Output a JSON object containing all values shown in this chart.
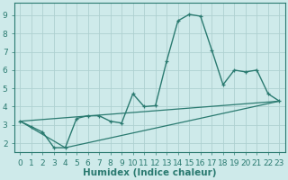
{
  "xlabel": "Humidex (Indice chaleur)",
  "ylabel": "",
  "bg_color": "#ceeaea",
  "line_color": "#2a7a70",
  "grid_color": "#aed0d0",
  "xlim": [
    -0.5,
    23.5
  ],
  "ylim": [
    1.5,
    9.7
  ],
  "xticks": [
    0,
    1,
    2,
    3,
    4,
    5,
    6,
    7,
    8,
    9,
    10,
    11,
    12,
    13,
    14,
    15,
    16,
    17,
    18,
    19,
    20,
    21,
    22,
    23
  ],
  "yticks": [
    2,
    3,
    4,
    5,
    6,
    7,
    8,
    9
  ],
  "line1_x": [
    0,
    1,
    2,
    3,
    4,
    5,
    6,
    7,
    8,
    9,
    10,
    11,
    12,
    13,
    14,
    15,
    16,
    17,
    18,
    19,
    20,
    21,
    22,
    23
  ],
  "line1_y": [
    3.2,
    2.9,
    2.6,
    1.75,
    1.75,
    3.35,
    3.5,
    3.5,
    3.2,
    3.1,
    4.7,
    4.0,
    4.05,
    6.5,
    8.7,
    9.05,
    8.95,
    7.1,
    5.2,
    6.0,
    5.9,
    6.0,
    4.7,
    4.3
  ],
  "line2_x": [
    0,
    23
  ],
  "line2_y": [
    3.2,
    4.3
  ],
  "line3_x": [
    0,
    4,
    23
  ],
  "line3_y": [
    3.2,
    1.75,
    4.3
  ],
  "xlabel_fontsize": 7.5,
  "tick_fontsize": 6.5
}
